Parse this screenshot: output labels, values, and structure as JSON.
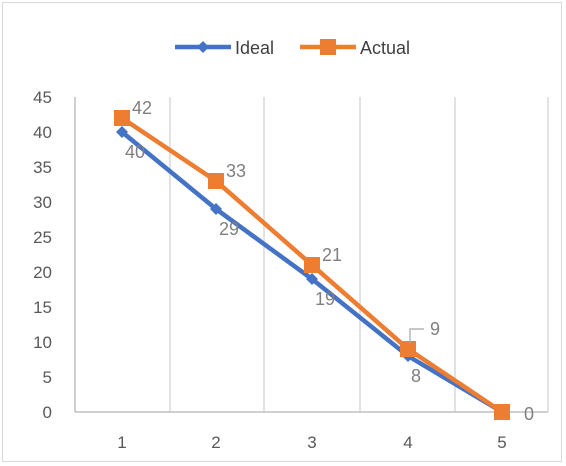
{
  "chart_data": {
    "type": "line",
    "categories": [
      "1",
      "2",
      "3",
      "4",
      "5"
    ],
    "series": [
      {
        "name": "Ideal",
        "values": [
          40,
          29,
          19,
          8,
          0
        ],
        "color": "#4472c4",
        "marker": "diamond"
      },
      {
        "name": "Actual",
        "values": [
          42,
          33,
          21,
          9,
          0
        ],
        "color": "#ed7d31",
        "marker": "square"
      }
    ],
    "ylim": [
      0,
      45
    ],
    "yticks": [
      "0",
      "5",
      "10",
      "15",
      "20",
      "25",
      "30",
      "35",
      "40",
      "45"
    ],
    "grid": "vertical",
    "legend": "top",
    "data_labels": true
  }
}
